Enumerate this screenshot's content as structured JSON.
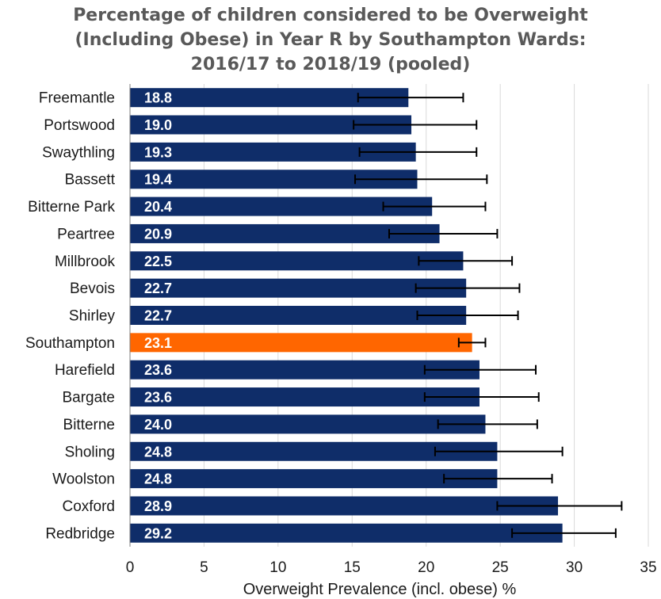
{
  "chart_data": {
    "type": "bar",
    "orientation": "horizontal",
    "title_lines": [
      "Percentage of children considered to be Overweight",
      "(Including Obese) in Year R by Southampton Wards:",
      "2016/17 to 2018/19 (pooled)"
    ],
    "xlabel": "Overweight Prevalence (incl. obese) %",
    "ylabel": "",
    "xlim": [
      0,
      35
    ],
    "xticks": [
      0,
      5,
      10,
      15,
      20,
      25,
      30,
      35
    ],
    "grid": "vertical",
    "legend": "none",
    "categories": [
      "Freemantle",
      "Portswood",
      "Swaythling",
      "Bassett",
      "Bitterne Park",
      "Peartree",
      "Millbrook",
      "Bevois",
      "Shirley",
      "Southampton",
      "Harefield",
      "Bargate",
      "Bitterne",
      "Sholing",
      "Woolston",
      "Coxford",
      "Redbridge"
    ],
    "value_labels": [
      "18.8",
      "19.0",
      "19.3",
      "19.4",
      "20.4",
      "20.9",
      "22.5",
      "22.7",
      "22.7",
      "23.1",
      "23.6",
      "23.6",
      "24.0",
      "24.8",
      "24.8",
      "28.9",
      "29.2"
    ],
    "values": [
      18.8,
      19.0,
      19.3,
      19.4,
      20.4,
      20.9,
      22.5,
      22.7,
      22.7,
      23.1,
      23.6,
      23.6,
      24.0,
      24.8,
      24.8,
      28.9,
      29.2
    ],
    "ci_lower": [
      15.4,
      15.1,
      15.5,
      15.2,
      17.1,
      17.5,
      19.5,
      19.3,
      19.4,
      22.2,
      19.9,
      19.9,
      20.8,
      20.6,
      21.2,
      24.8,
      25.8
    ],
    "ci_upper": [
      22.5,
      23.4,
      23.4,
      24.1,
      24.0,
      24.8,
      25.8,
      26.3,
      26.2,
      24.0,
      27.4,
      27.6,
      27.5,
      29.2,
      28.5,
      33.2,
      32.8
    ],
    "highlight_category": "Southampton",
    "colors": {
      "bar": "#0f2d69",
      "highlight": "#ff6600",
      "grid": "#d9d9d9",
      "error_bar": "#000000",
      "title": "#595959"
    }
  }
}
